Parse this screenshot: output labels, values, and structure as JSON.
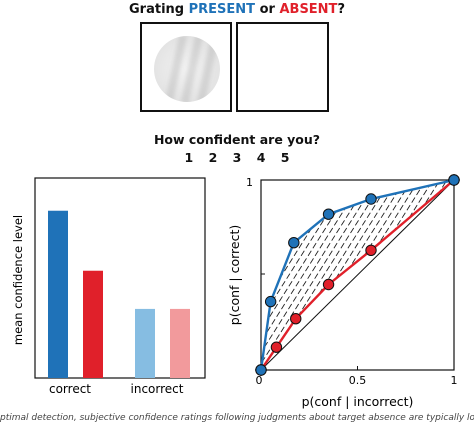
{
  "header": {
    "prefix": "Grating",
    "present": "PRESENT",
    "or": "or",
    "absent": "ABSENT",
    "suffix": "?"
  },
  "confidence_question": "How confident are you?",
  "confidence_scale": "1 2 3 4 5",
  "caption": "ptimal detection, subjective confidence ratings following judgments about target absence are typically lower, and less",
  "colors": {
    "present": "#1f72b8",
    "absent": "#e0202a",
    "present_light": "#86bde2",
    "absent_light": "#f29a9c"
  },
  "chart_data": [
    {
      "type": "bar",
      "ylabel": "mean confidence level",
      "categories": [
        "correct",
        "incorrect"
      ],
      "series": [
        {
          "values": [
            4.6,
            1.9
          ],
          "colors": [
            "#1f72b8",
            "#86bde2"
          ]
        },
        {
          "values": [
            2.95,
            1.9
          ],
          "colors": [
            "#e0202a",
            "#f29a9c"
          ]
        }
      ],
      "ylim": [
        0,
        5.5
      ]
    },
    {
      "type": "line",
      "xlabel": "p(conf | incorrect)",
      "ylabel": "p(conf | correct)",
      "xlim": [
        0,
        1
      ],
      "ylim": [
        0,
        1
      ],
      "xticks": [
        "0",
        "0.5",
        "1"
      ],
      "yticks": [
        "1"
      ],
      "series": [
        {
          "color": "#1f72b8",
          "points": [
            [
              0,
              0
            ],
            [
              0.05,
              0.36
            ],
            [
              0.17,
              0.67
            ],
            [
              0.35,
              0.82
            ],
            [
              0.57,
              0.9
            ],
            [
              1,
              1
            ]
          ]
        },
        {
          "color": "#e0202a",
          "points": [
            [
              0,
              0
            ],
            [
              0.08,
              0.12
            ],
            [
              0.18,
              0.27
            ],
            [
              0.35,
              0.45
            ],
            [
              0.57,
              0.63
            ],
            [
              1,
              1
            ]
          ]
        }
      ],
      "diagonal": true,
      "hatched_region": true
    }
  ]
}
